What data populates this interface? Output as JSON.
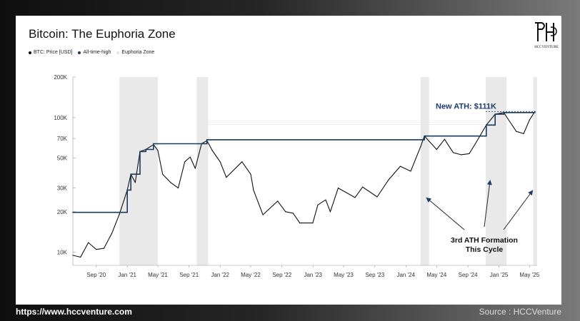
{
  "title": "Bitcoin: The Euphoria Zone",
  "logo_text": "HCCVENTURE",
  "footer": {
    "url": "https://www.hccventure.com",
    "source": "Source : HCCVenture"
  },
  "colors": {
    "price": "#111111",
    "ath": "#173a5e",
    "zone": "#e9e9e9",
    "annotation": "#1f3a6b"
  },
  "chart_data": {
    "type": "line",
    "title": "Bitcoin: The Euphoria Zone",
    "xlabel": "",
    "ylabel": "",
    "y_scale": "log",
    "ylim": [
      8000,
      200000
    ],
    "xlim": [
      "2020-06-01",
      "2025-05-31"
    ],
    "legend": [
      "BTC: Price [USD]",
      "All-time-high",
      "Euphoria Zone"
    ],
    "legend_position": "top-left",
    "x_ticks": [
      "Sep '20",
      "Jan '21",
      "May '21",
      "Sep '21",
      "Jan '22",
      "May '22",
      "Sep '22",
      "Jan '23",
      "May '23",
      "Sep '23",
      "Jan '24",
      "May '24",
      "Sep '24",
      "Jan '25",
      "May '25"
    ],
    "y_ticks": [
      "10K",
      "20K",
      "30K",
      "50K",
      "70K",
      "100K",
      "200K"
    ],
    "series": [
      {
        "name": "BTC: Price [USD]",
        "points": [
          [
            "2020-06-01",
            9500
          ],
          [
            "2020-07-01",
            9200
          ],
          [
            "2020-08-01",
            11800
          ],
          [
            "2020-09-01",
            10500
          ],
          [
            "2020-10-01",
            10700
          ],
          [
            "2020-11-01",
            13800
          ],
          [
            "2020-12-01",
            19200
          ],
          [
            "2021-01-01",
            29000
          ],
          [
            "2021-01-15",
            38000
          ],
          [
            "2021-02-01",
            33000
          ],
          [
            "2021-02-20",
            56000
          ],
          [
            "2021-03-15",
            58000
          ],
          [
            "2021-04-14",
            63000
          ],
          [
            "2021-05-01",
            57000
          ],
          [
            "2021-05-20",
            38000
          ],
          [
            "2021-06-20",
            33000
          ],
          [
            "2021-07-20",
            30000
          ],
          [
            "2021-08-15",
            47000
          ],
          [
            "2021-09-05",
            51000
          ],
          [
            "2021-09-25",
            42000
          ],
          [
            "2021-10-20",
            64000
          ],
          [
            "2021-11-10",
            67500
          ],
          [
            "2021-12-01",
            57000
          ],
          [
            "2022-01-01",
            47000
          ],
          [
            "2022-01-25",
            36000
          ],
          [
            "2022-03-28",
            47000
          ],
          [
            "2022-05-01",
            38000
          ],
          [
            "2022-05-12",
            29000
          ],
          [
            "2022-06-18",
            19000
          ],
          [
            "2022-08-15",
            24000
          ],
          [
            "2022-09-15",
            20000
          ],
          [
            "2022-10-15",
            19500
          ],
          [
            "2022-11-10",
            16500
          ],
          [
            "2022-12-31",
            16500
          ],
          [
            "2023-01-20",
            22500
          ],
          [
            "2023-02-20",
            24500
          ],
          [
            "2023-03-10",
            20000
          ],
          [
            "2023-04-10",
            30000
          ],
          [
            "2023-06-15",
            25500
          ],
          [
            "2023-07-15",
            30500
          ],
          [
            "2023-09-10",
            25800
          ],
          [
            "2023-10-25",
            34500
          ],
          [
            "2023-12-10",
            43500
          ],
          [
            "2024-01-20",
            40000
          ],
          [
            "2024-02-28",
            61000
          ],
          [
            "2024-03-14",
            73000
          ],
          [
            "2024-05-01",
            58000
          ],
          [
            "2024-06-01",
            69000
          ],
          [
            "2024-07-05",
            55000
          ],
          [
            "2024-08-05",
            53000
          ],
          [
            "2024-09-06",
            54000
          ],
          [
            "2024-09-30",
            64000
          ],
          [
            "2024-11-12",
            88000
          ],
          [
            "2024-12-17",
            106000
          ],
          [
            "2025-01-20",
            109000
          ],
          [
            "2025-02-05",
            98000
          ],
          [
            "2025-03-10",
            79000
          ],
          [
            "2025-04-08",
            76000
          ],
          [
            "2025-05-01",
            96000
          ],
          [
            "2025-05-22",
            111000
          ]
        ]
      },
      {
        "name": "All-time-high",
        "points": [
          [
            "2020-06-01",
            19800
          ],
          [
            "2020-12-01",
            19800
          ],
          [
            "2021-01-01",
            29000
          ],
          [
            "2021-01-15",
            38000
          ],
          [
            "2021-02-20",
            56000
          ],
          [
            "2021-03-15",
            58000
          ],
          [
            "2021-04-14",
            64000
          ],
          [
            "2021-11-10",
            68500
          ],
          [
            "2024-03-14",
            73000
          ],
          [
            "2024-11-12",
            88000
          ],
          [
            "2024-12-17",
            106000
          ],
          [
            "2025-01-20",
            109000
          ],
          [
            "2025-05-22",
            111000
          ]
        ]
      }
    ],
    "zones": [
      [
        "2020-12-01",
        "2021-05-01"
      ],
      [
        "2021-10-01",
        "2021-11-15"
      ],
      [
        "2024-02-28",
        "2024-04-01"
      ],
      [
        "2024-11-10",
        "2025-01-31"
      ],
      [
        "2025-05-15",
        "2025-05-31"
      ]
    ],
    "annotations": [
      {
        "text": "New ATH: $111K",
        "date": "2025-05-22",
        "value": 111000
      },
      {
        "text": "3rd ATH Formation\nThis Cycle",
        "targets": [
          "2024-03-14",
          "2024-12-17",
          "2025-05-22"
        ]
      }
    ]
  }
}
